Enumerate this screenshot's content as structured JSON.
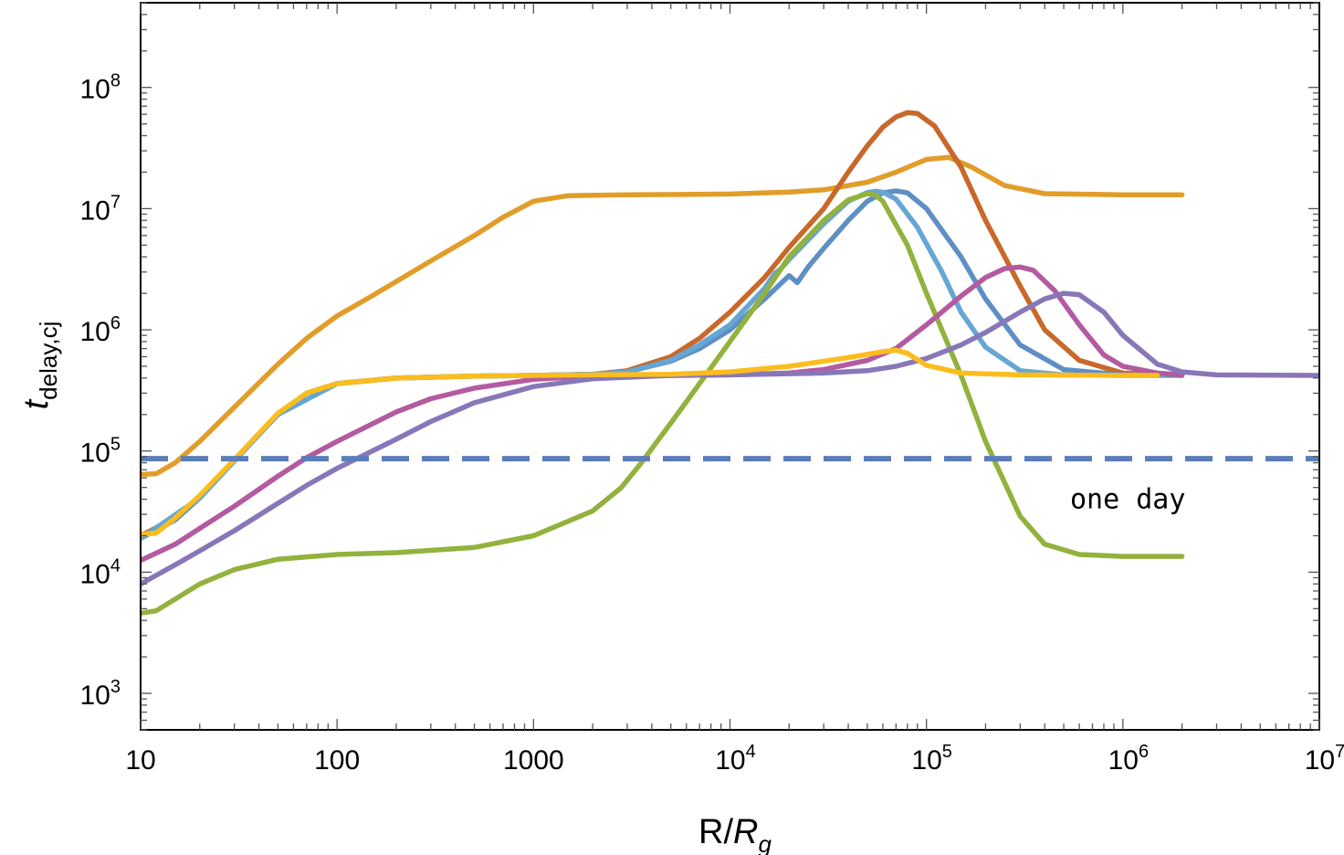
{
  "chart_data": {
    "type": "line",
    "title": "",
    "xlabel": {
      "main": "R/",
      "italic": "R",
      "sub": "g"
    },
    "ylabel": {
      "italic": "t",
      "sub": "delay,cj"
    },
    "x_scale": "log",
    "y_scale": "log",
    "xlim": [
      10,
      10000000
    ],
    "ylim": [
      500,
      500000000
    ],
    "x_ticks": [
      {
        "value": 10,
        "base": "10",
        "exp": ""
      },
      {
        "value": 100,
        "base": "100",
        "exp": ""
      },
      {
        "value": 1000,
        "base": "1000",
        "exp": ""
      },
      {
        "value": 10000,
        "base": "10",
        "exp": "4"
      },
      {
        "value": 100000,
        "base": "10",
        "exp": "5"
      },
      {
        "value": 1000000,
        "base": "10",
        "exp": "6"
      },
      {
        "value": 10000000,
        "base": "10",
        "exp": "7"
      }
    ],
    "y_ticks": [
      {
        "value": 1000,
        "base": "10",
        "exp": "3"
      },
      {
        "value": 10000,
        "base": "10",
        "exp": "4"
      },
      {
        "value": 100000,
        "base": "10",
        "exp": "5"
      },
      {
        "value": 1000000,
        "base": "10",
        "exp": "6"
      },
      {
        "value": 10000000,
        "base": "10",
        "exp": "7"
      },
      {
        "value": 100000000,
        "base": "10",
        "exp": "8"
      }
    ],
    "grid": false,
    "reference_line": {
      "y": 86400,
      "style": "dashed",
      "color": "#5b7db9",
      "label": "one day",
      "label_at": [
        28000000,
        40000
      ]
    },
    "series": [
      {
        "color": "#e19d2a",
        "points": [
          [
            10,
            64000
          ],
          [
            12,
            65000
          ],
          [
            15,
            80000
          ],
          [
            20,
            120000
          ],
          [
            30,
            230000
          ],
          [
            50,
            520000
          ],
          [
            70,
            850000
          ],
          [
            100,
            1300000
          ],
          [
            150,
            1900000
          ],
          [
            200,
            2500000
          ],
          [
            300,
            3700000
          ],
          [
            500,
            6000000
          ],
          [
            700,
            8500000
          ],
          [
            1000,
            11500000
          ],
          [
            1500,
            12800000
          ],
          [
            3000,
            13000000
          ],
          [
            10000,
            13200000
          ],
          [
            20000,
            13700000
          ],
          [
            30000,
            14300000
          ],
          [
            50000,
            16500000
          ],
          [
            70000,
            20000000
          ],
          [
            100000,
            25500000
          ],
          [
            130000,
            26500000
          ],
          [
            170000,
            22000000
          ],
          [
            250000,
            15500000
          ],
          [
            400000,
            13300000
          ],
          [
            1000000,
            13000000
          ],
          [
            2000000,
            13000000
          ]
        ]
      },
      {
        "color": "#c8682a",
        "points": [
          [
            10,
            20000
          ],
          [
            15,
            28000
          ],
          [
            20,
            42000
          ],
          [
            30,
            85000
          ],
          [
            50,
            200000
          ],
          [
            70,
            300000
          ],
          [
            100,
            360000
          ],
          [
            200,
            400000
          ],
          [
            500,
            415000
          ],
          [
            1000,
            420000
          ],
          [
            2000,
            430000
          ],
          [
            3000,
            460000
          ],
          [
            5000,
            600000
          ],
          [
            7000,
            850000
          ],
          [
            10000,
            1400000
          ],
          [
            15000,
            2700000
          ],
          [
            20000,
            4800000
          ],
          [
            30000,
            10000000
          ],
          [
            40000,
            20000000
          ],
          [
            50000,
            33000000
          ],
          [
            60000,
            47000000
          ],
          [
            70000,
            57000000
          ],
          [
            80000,
            62000000
          ],
          [
            90000,
            61000000
          ],
          [
            110000,
            48000000
          ],
          [
            150000,
            22000000
          ],
          [
            200000,
            8000000
          ],
          [
            300000,
            2300000
          ],
          [
            400000,
            1000000
          ],
          [
            600000,
            560000
          ],
          [
            1000000,
            440000
          ],
          [
            2000000,
            420000
          ]
        ]
      },
      {
        "color": "#5e8fc4",
        "points": [
          [
            10,
            19000
          ],
          [
            15,
            27000
          ],
          [
            20,
            41000
          ],
          [
            30,
            84000
          ],
          [
            50,
            200000
          ],
          [
            70,
            300000
          ],
          [
            100,
            360000
          ],
          [
            200,
            400000
          ],
          [
            500,
            415000
          ],
          [
            1000,
            420000
          ],
          [
            2000,
            430000
          ],
          [
            3000,
            450000
          ],
          [
            5000,
            550000
          ],
          [
            7000,
            700000
          ],
          [
            10000,
            1000000
          ],
          [
            15000,
            1800000
          ],
          [
            20000,
            2800000
          ],
          [
            22000,
            2450000
          ],
          [
            25000,
            3300000
          ],
          [
            30000,
            4700000
          ],
          [
            40000,
            8000000
          ],
          [
            50000,
            11500000
          ],
          [
            60000,
            13500000
          ],
          [
            70000,
            14000000
          ],
          [
            80000,
            13500000
          ],
          [
            100000,
            10000000
          ],
          [
            150000,
            4000000
          ],
          [
            200000,
            1800000
          ],
          [
            300000,
            750000
          ],
          [
            500000,
            470000
          ],
          [
            1000000,
            425000
          ],
          [
            2000000,
            420000
          ]
        ]
      },
      {
        "color": "#66a6d4",
        "points": [
          [
            10,
            19000
          ],
          [
            20,
            41000
          ],
          [
            50,
            200000
          ],
          [
            100,
            360000
          ],
          [
            200,
            400000
          ],
          [
            500,
            415000
          ],
          [
            1000,
            420000
          ],
          [
            2000,
            430000
          ],
          [
            3000,
            450000
          ],
          [
            5000,
            560000
          ],
          [
            7000,
            750000
          ],
          [
            10000,
            1100000
          ],
          [
            15000,
            2200000
          ],
          [
            17000,
            2950000
          ],
          [
            18000,
            3150000
          ],
          [
            20000,
            3800000
          ],
          [
            30000,
            7500000
          ],
          [
            40000,
            11500000
          ],
          [
            50000,
            13600000
          ],
          [
            55000,
            13900000
          ],
          [
            60000,
            13700000
          ],
          [
            70000,
            12000000
          ],
          [
            90000,
            7000000
          ],
          [
            120000,
            3000000
          ],
          [
            150000,
            1400000
          ],
          [
            200000,
            720000
          ],
          [
            300000,
            460000
          ],
          [
            500000,
            425000
          ],
          [
            1000000,
            420000
          ],
          [
            1600000,
            420000
          ]
        ]
      },
      {
        "color": "#92b23d",
        "points": [
          [
            10,
            4600
          ],
          [
            12,
            4800
          ],
          [
            15,
            6000
          ],
          [
            20,
            8000
          ],
          [
            30,
            10500
          ],
          [
            50,
            12800
          ],
          [
            100,
            14000
          ],
          [
            200,
            14500
          ],
          [
            500,
            16000
          ],
          [
            1000,
            20000
          ],
          [
            2000,
            32000
          ],
          [
            2800,
            50000
          ],
          [
            3500,
            78000
          ],
          [
            5000,
            170000
          ],
          [
            7000,
            360000
          ],
          [
            10000,
            800000
          ],
          [
            15000,
            2000000
          ],
          [
            20000,
            4000000
          ],
          [
            30000,
            8000000
          ],
          [
            40000,
            11800000
          ],
          [
            50000,
            13300000
          ],
          [
            55000,
            13000000
          ],
          [
            60000,
            11500000
          ],
          [
            80000,
            5000000
          ],
          [
            100000,
            2000000
          ],
          [
            150000,
            420000
          ],
          [
            200000,
            120000
          ],
          [
            300000,
            29000
          ],
          [
            400000,
            17000
          ],
          [
            600000,
            14000
          ],
          [
            1000000,
            13500.0
          ],
          [
            2000000,
            13500
          ]
        ]
      },
      {
        "color": "#b35aa0",
        "points": [
          [
            10,
            12500
          ],
          [
            15,
            17000
          ],
          [
            20,
            23000
          ],
          [
            30,
            35000
          ],
          [
            50,
            62000
          ],
          [
            70,
            88000
          ],
          [
            100,
            120000
          ],
          [
            200,
            210000
          ],
          [
            300,
            270000
          ],
          [
            500,
            330000
          ],
          [
            1000,
            390000
          ],
          [
            2000,
            415000
          ],
          [
            5000,
            420000
          ],
          [
            10000,
            425000
          ],
          [
            20000,
            440000
          ],
          [
            30000,
            470000
          ],
          [
            50000,
            560000
          ],
          [
            70000,
            700000
          ],
          [
            100000,
            1100000
          ],
          [
            150000,
            1900000
          ],
          [
            200000,
            2700000
          ],
          [
            250000,
            3200000
          ],
          [
            300000,
            3300000
          ],
          [
            350000,
            3100000
          ],
          [
            450000,
            2100000
          ],
          [
            600000,
            1100000
          ],
          [
            800000,
            620000
          ],
          [
            1000000,
            500000
          ],
          [
            1500000,
            440000
          ],
          [
            2000000,
            425000
          ]
        ]
      },
      {
        "color": "#8877b8",
        "points": [
          [
            10,
            8000
          ],
          [
            15,
            11500
          ],
          [
            20,
            15000
          ],
          [
            30,
            22000
          ],
          [
            50,
            37000
          ],
          [
            70,
            52000
          ],
          [
            100,
            72000
          ],
          [
            200,
            125000
          ],
          [
            300,
            175000
          ],
          [
            500,
            250000
          ],
          [
            1000,
            340000
          ],
          [
            2000,
            395000
          ],
          [
            5000,
            420000
          ],
          [
            10000,
            425000
          ],
          [
            30000,
            440000
          ],
          [
            50000,
            460000
          ],
          [
            70000,
            500000
          ],
          [
            100000,
            580000
          ],
          [
            150000,
            750000
          ],
          [
            200000,
            950000
          ],
          [
            300000,
            1400000
          ],
          [
            400000,
            1800000
          ],
          [
            500000,
            2000000
          ],
          [
            600000,
            1950000
          ],
          [
            800000,
            1400000
          ],
          [
            1000000,
            900000
          ],
          [
            1500000,
            520000
          ],
          [
            2000000,
            450000
          ],
          [
            3000000,
            425000
          ],
          [
            10000000,
            420000
          ]
        ]
      },
      {
        "color": "#fbbd1e",
        "points": [
          [
            10,
            20500
          ],
          [
            12,
            21000
          ],
          [
            15,
            28000
          ],
          [
            20,
            43000
          ],
          [
            30,
            85000
          ],
          [
            50,
            205000
          ],
          [
            70,
            300000
          ],
          [
            100,
            360000
          ],
          [
            200,
            400000
          ],
          [
            500,
            415000
          ],
          [
            1000,
            420000
          ],
          [
            2000,
            425000
          ],
          [
            5000,
            430000
          ],
          [
            10000,
            450000
          ],
          [
            20000,
            500000
          ],
          [
            40000,
            590000
          ],
          [
            60000,
            660000
          ],
          [
            70000,
            680000
          ],
          [
            80000,
            640000
          ],
          [
            100000,
            510000
          ],
          [
            150000,
            440000
          ],
          [
            300000,
            425000
          ],
          [
            1000000,
            420000
          ],
          [
            1500000,
            420000
          ]
        ]
      }
    ]
  }
}
